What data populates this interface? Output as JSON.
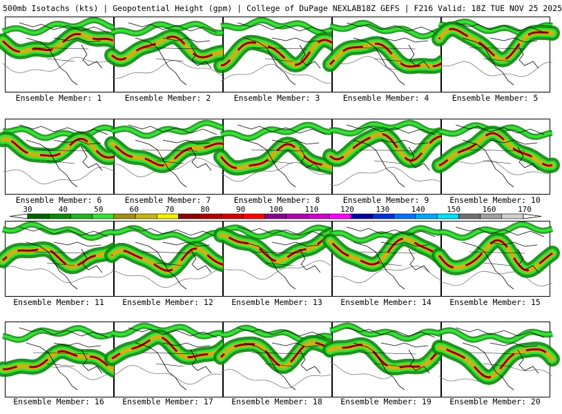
{
  "header": {
    "left_title": "500mb Isotachs (kts) | Geopotential Height (gpm) | College of DuPage NEXLAB",
    "right_title": "18Z GEFS | F216 Valid: 18Z TUE NOV 25 2025"
  },
  "panel_label_prefix": "Ensemble Member: ",
  "members": [
    1,
    2,
    3,
    4,
    5,
    6,
    7,
    8,
    9,
    10,
    11,
    12,
    13,
    14,
    15,
    16,
    17,
    18,
    19,
    20
  ],
  "colorbar": {
    "ticks": [
      30,
      40,
      50,
      60,
      70,
      80,
      90,
      100,
      110,
      120,
      130,
      140,
      150,
      160,
      170
    ],
    "colors": [
      "#006400",
      "#0a8a0a",
      "#22b522",
      "#36e236",
      "#a09010",
      "#c8b414",
      "#f0f000",
      "#8b0000",
      "#b00000",
      "#d40000",
      "#ff0000",
      "#8b008b",
      "#b000b0",
      "#d000d0",
      "#ff00ff",
      "#0000a0",
      "#0030e0",
      "#0070ff",
      "#00a8ff",
      "#00e0ff",
      "#707070",
      "#a0a0a0",
      "#d0d0d0"
    ]
  }
}
